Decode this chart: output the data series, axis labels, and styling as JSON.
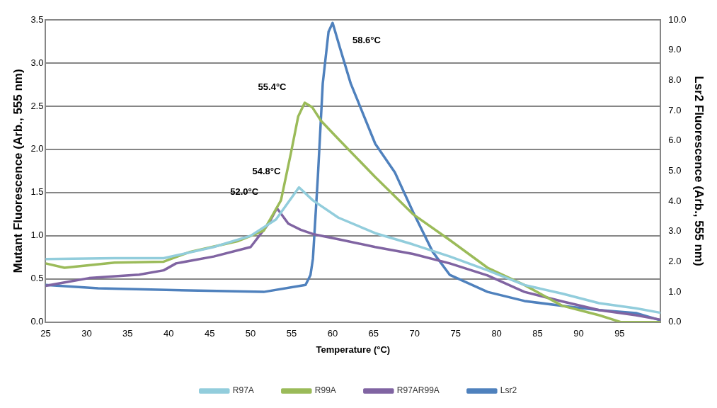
{
  "chart_data": {
    "type": "line",
    "xlabel": "Temperature (°C)",
    "ylabel": "Mutant Fluorescence (Arb., 555 nm)",
    "y2label": "Lsr2 Fluorescence (Arb., 555 nm)",
    "xlim": [
      25,
      100
    ],
    "xticks": [
      25,
      30,
      35,
      40,
      45,
      50,
      55,
      60,
      65,
      70,
      75,
      80,
      85,
      90,
      95
    ],
    "ylim": [
      0,
      3.5
    ],
    "yticks": [
      {
        "value": 0,
        "label": "0.0"
      },
      0.5,
      {
        "value": 1,
        "label": "1.0"
      },
      1.5,
      {
        "value": 2,
        "label": "2.0"
      },
      2.5,
      {
        "value": 3,
        "label": "3.0"
      },
      3.5
    ],
    "y2lim": [
      0,
      10
    ],
    "y2ticks": [
      {
        "value": 0,
        "label": "0.0"
      },
      {
        "value": 1,
        "label": "1.0"
      },
      {
        "value": 2,
        "label": "2.0"
      },
      {
        "value": 3,
        "label": "3.0"
      },
      {
        "value": 4,
        "label": "4.0"
      },
      {
        "value": 5,
        "label": "5.0"
      },
      {
        "value": 6,
        "label": "6.0"
      },
      {
        "value": 7,
        "label": "7.0"
      },
      {
        "value": 8,
        "label": "8.0"
      },
      {
        "value": 9,
        "label": "9.0"
      },
      {
        "value": 10,
        "label": "10.0"
      }
    ],
    "grid": "y",
    "legend": "bottom",
    "marker": "none",
    "line_style": "solid",
    "series": [
      {
        "name": "R97A",
        "color": "#92cddc",
        "x": [
          25,
          33.4,
          39.4,
          45.5,
          50,
          53.1,
          55.9,
          57.6,
          60.7,
          65.2,
          69.8,
          74.3,
          78.9,
          83.4,
          88,
          92.5,
          97,
          99.9
        ],
        "values": [
          0.73,
          0.74,
          0.74,
          0.87,
          1.0,
          1.19,
          1.56,
          1.41,
          1.21,
          1.03,
          0.9,
          0.76,
          0.6,
          0.43,
          0.33,
          0.22,
          0.16,
          0.11
        ]
      },
      {
        "name": "R99A",
        "color": "#9bbb59",
        "x": [
          25,
          27.3,
          33.4,
          39.4,
          42.5,
          48.5,
          51.6,
          53.7,
          54.9,
          55.8,
          56.6,
          57.5,
          58.6,
          60.7,
          65.2,
          69.8,
          74.3,
          78.9,
          83.4,
          88,
          92.5,
          95.2,
          99.9
        ],
        "values": [
          0.68,
          0.63,
          0.69,
          0.7,
          0.81,
          0.94,
          1.06,
          1.41,
          1.95,
          2.38,
          2.54,
          2.49,
          2.33,
          2.12,
          1.68,
          1.25,
          0.95,
          0.63,
          0.43,
          0.19,
          0.08,
          0.0,
          0.0
        ]
      },
      {
        "name": "R97AR99A",
        "color": "#8064a2",
        "x": [
          25,
          27.3,
          30.3,
          36.4,
          39.4,
          40.9,
          45.5,
          50,
          52.2,
          53.2,
          54.6,
          56.1,
          57.6,
          60.7,
          65.2,
          69.8,
          74.3,
          78.9,
          83.4,
          88,
          92.5,
          97,
          99.9
        ],
        "values": [
          0.42,
          0.46,
          0.51,
          0.55,
          0.6,
          0.68,
          0.76,
          0.87,
          1.14,
          1.32,
          1.14,
          1.07,
          1.02,
          0.96,
          0.87,
          0.79,
          0.68,
          0.54,
          0.35,
          0.24,
          0.14,
          0.08,
          0.03
        ]
      },
      {
        "name": "Lsr2",
        "color": "#4f81bd",
        "axis": "y2",
        "x": [
          25,
          31.4,
          42.5,
          51.6,
          56.7,
          57.3,
          57.6,
          58.2,
          58.8,
          59.5,
          60.0,
          60.9,
          62.2,
          65.2,
          67.6,
          69.8,
          72.2,
          74.3,
          78.9,
          83.4,
          88,
          92.5,
          97,
          99.9
        ],
        "values": [
          1.23,
          1.12,
          1.05,
          1.0,
          1.23,
          1.56,
          2.1,
          4.8,
          7.9,
          9.6,
          9.9,
          9.07,
          7.9,
          5.9,
          4.95,
          3.65,
          2.33,
          1.56,
          1.0,
          0.7,
          0.54,
          0.4,
          0.3,
          0.07
        ]
      }
    ],
    "annotations": [
      {
        "text": "52.0°C",
        "x": 53.2,
        "y": 1.32
      },
      {
        "text": "54.8°C",
        "x": 55.9,
        "y": 1.56
      },
      {
        "text": "55.4°C",
        "x": 56.6,
        "y": 2.54
      },
      {
        "text": "58.6°C",
        "x": 60.0,
        "y": 3.465
      }
    ]
  }
}
